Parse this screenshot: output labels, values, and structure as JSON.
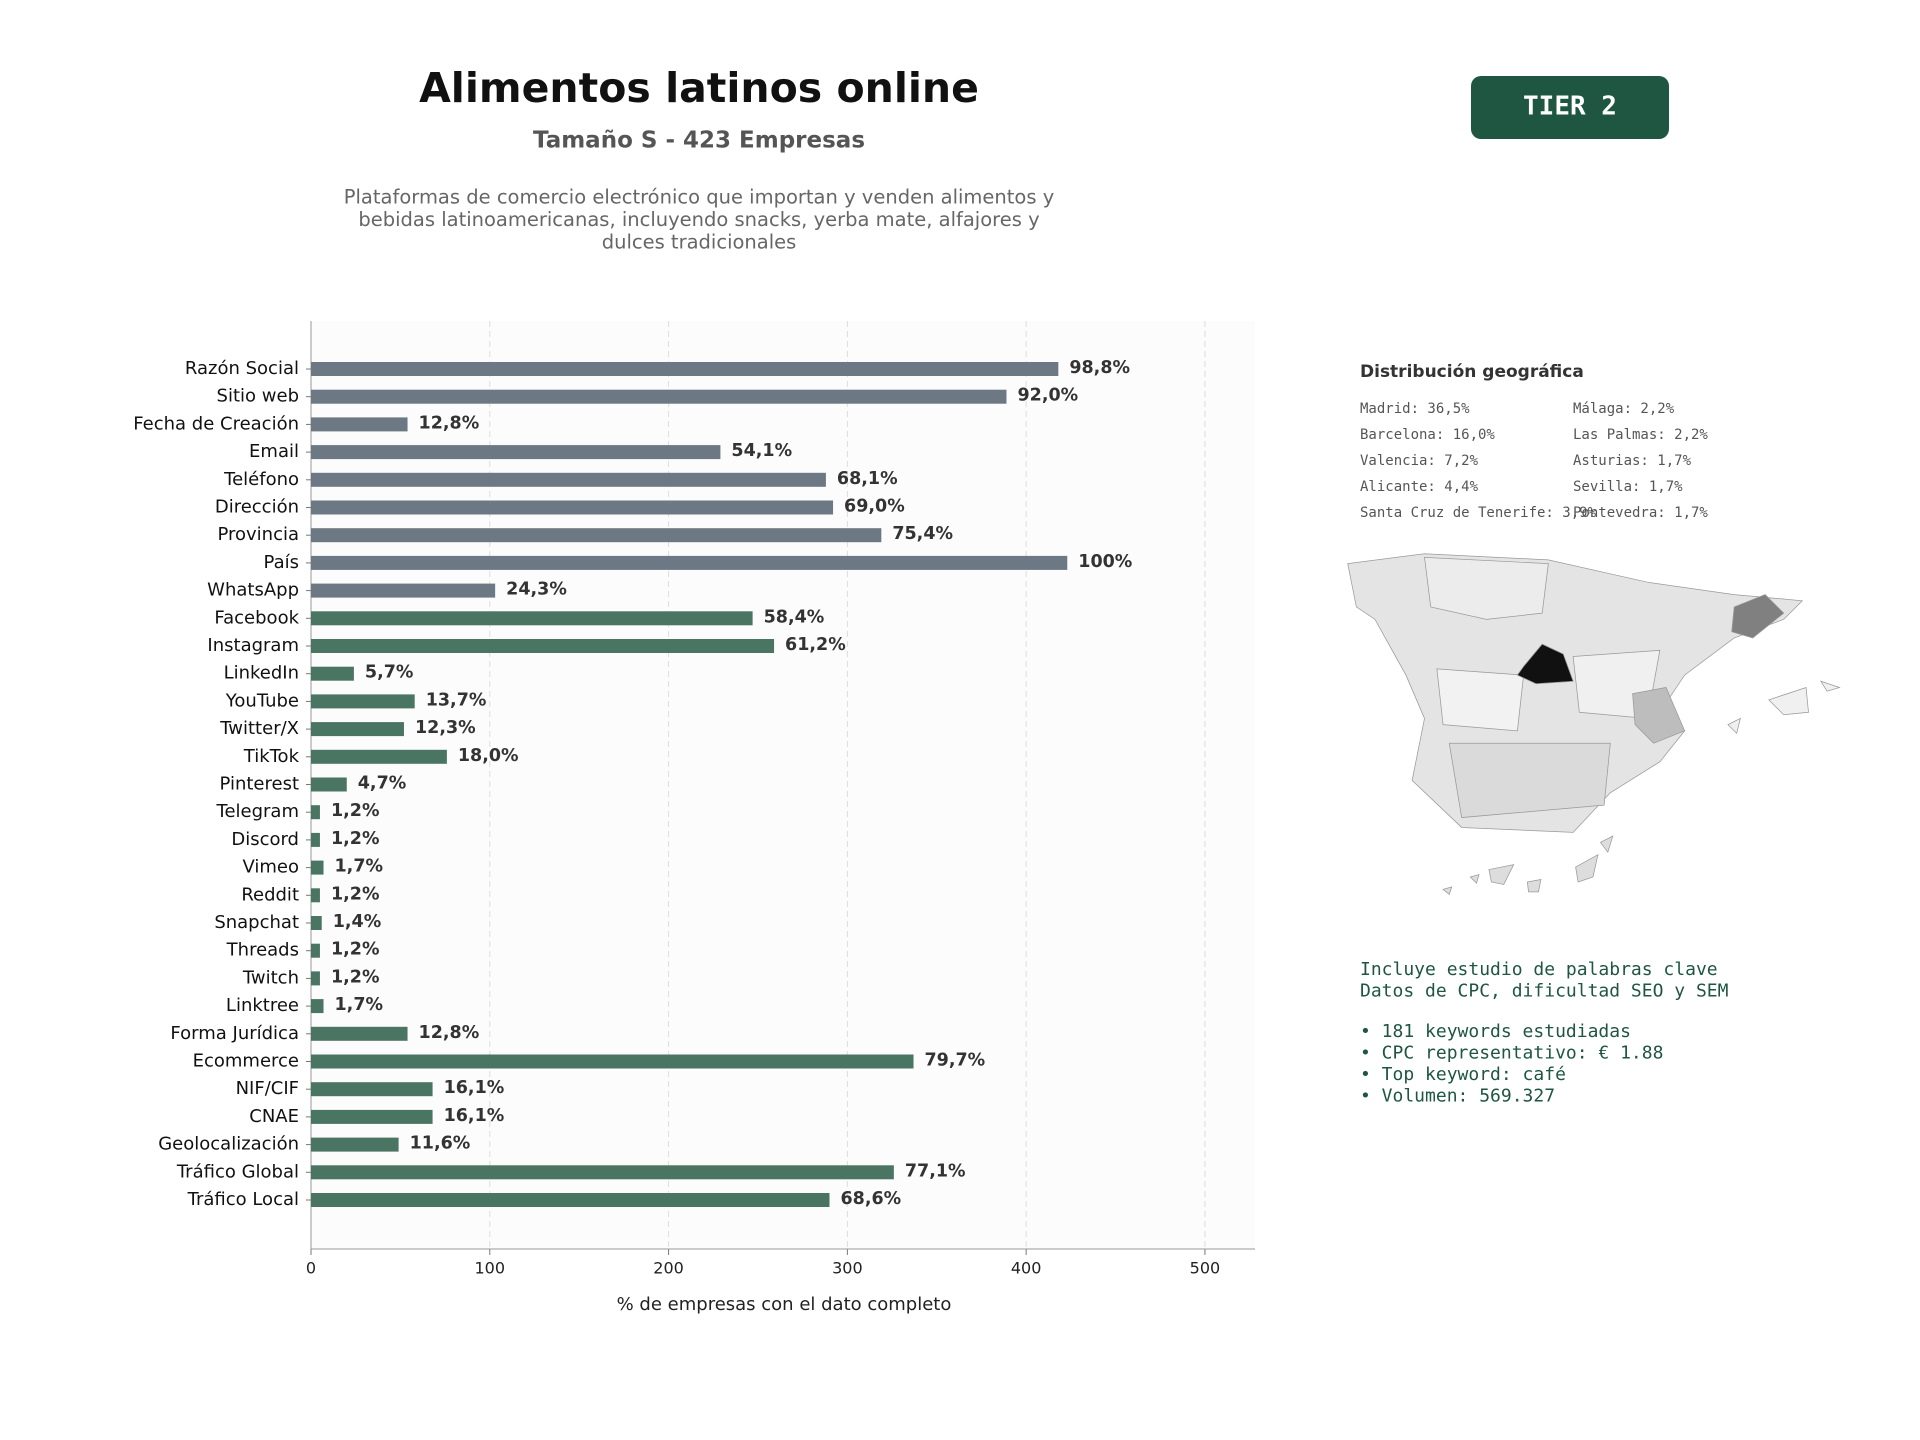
{
  "chart_data": {
    "type": "bar",
    "orientation": "horizontal",
    "title": "Alimentos latinos online",
    "subtitle": "Tamaño S - 423 Empresas",
    "description": [
      "Plataformas de comercio electrónico que importan y venden alimentos y",
      "bebidas latinoamericanas, incluyendo snacks, yerba mate, alfajores y",
      "dulces tradicionales"
    ],
    "badge": "TIER 2",
    "xlabel": "% de empresas con el dato completo",
    "categories": [
      "Razón Social",
      "Sitio web",
      "Fecha de Creación",
      "Email",
      "Teléfono",
      "Dirección",
      "Provincia",
      "País",
      "WhatsApp",
      "Facebook",
      "Instagram",
      "LinkedIn",
      "YouTube",
      "Twitter/X",
      "TikTok",
      "Pinterest",
      "Telegram",
      "Discord",
      "Vimeo",
      "Reddit",
      "Snapchat",
      "Threads",
      "Twitch",
      "Linktree",
      "Forma Jurídica",
      "Ecommerce",
      "NIF/CIF",
      "CNAE",
      "Geolocalización",
      "Tráfico Global",
      "Tráfico Local"
    ],
    "values": [
      418,
      389,
      54,
      229,
      288,
      292,
      319,
      423,
      103,
      247,
      259,
      24,
      58,
      52,
      76,
      20,
      5,
      5,
      7,
      5,
      6,
      5,
      5,
      7,
      54,
      337,
      68,
      68,
      49,
      326,
      290
    ],
    "value_labels": [
      "98,8%",
      "92,0%",
      "12,8%",
      "54,1%",
      "68,1%",
      "69,0%",
      "75,4%",
      "100%",
      "24,3%",
      "58,4%",
      "61,2%",
      "5,7%",
      "13,7%",
      "12,3%",
      "18,0%",
      "4,7%",
      "1,2%",
      "1,2%",
      "1,7%",
      "1,2%",
      "1,4%",
      "1,2%",
      "1,2%",
      "1,7%",
      "12,8%",
      "79,7%",
      "16,1%",
      "16,1%",
      "11,6%",
      "77,1%",
      "68,6%"
    ],
    "colors": [
      "#6c7883",
      "#6c7883",
      "#6c7883",
      "#6c7883",
      "#6c7883",
      "#6c7883",
      "#6c7883",
      "#6c7883",
      "#6c7883",
      "#4a7563",
      "#4a7563",
      "#4a7563",
      "#4a7563",
      "#4a7563",
      "#4a7563",
      "#4a7563",
      "#4a7563",
      "#4a7563",
      "#4a7563",
      "#4a7563",
      "#4a7563",
      "#4a7563",
      "#4a7563",
      "#4a7563",
      "#4a7563",
      "#4a7563",
      "#4a7563",
      "#4a7563",
      "#4a7563",
      "#4a7563",
      "#4a7563"
    ],
    "xlim": [
      0,
      528
    ],
    "xticks": [
      0,
      100,
      200,
      300,
      400,
      500
    ],
    "grid": true
  },
  "geo": {
    "title": "Distribución geográfica",
    "items": [
      "Madrid: 36,5%",
      "Barcelona: 16,0%",
      "Valencia: 7,2%",
      "Alicante: 4,4%",
      "Santa Cruz de Tenerife: 3,9%",
      "Málaga: 2,2%",
      "Las Palmas: 2,2%",
      "Asturias: 1,7%",
      "Sevilla: 1,7%",
      "Pontevedra: 1,7%"
    ]
  },
  "keywords": {
    "intro": [
      "Incluye estudio de palabras clave",
      "Datos de CPC, dificultad SEO y SEM"
    ],
    "bullets": [
      "• 181 keywords estudiadas",
      "• CPC representativo: € 1.88",
      "• Top keyword: café",
      "• Volumen: 569.327"
    ]
  }
}
